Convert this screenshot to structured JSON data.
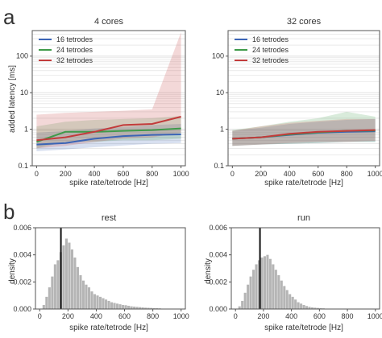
{
  "panel_labels": [
    "a",
    "b"
  ],
  "colors": {
    "16 tetrodes": "#3b64b6",
    "24 tetrodes": "#3f9a4a",
    "32 tetrodes": "#c23b3b",
    "hist": "#b5b5b5",
    "marker": "#111111",
    "grid": "#dddddd",
    "frame": "#555555"
  },
  "chart_data": [
    {
      "type": "line",
      "title": "4 cores",
      "xlabel": "spike rate/tetrode [Hz]",
      "ylabel": "added latency [ms]",
      "yscale": "log",
      "xlim": [
        -30,
        1030
      ],
      "ylim": [
        0.1,
        500
      ],
      "xticks": [
        "0",
        "200",
        "400",
        "600",
        "800",
        "1000"
      ],
      "yticks": [
        "0.1",
        "1",
        "10",
        "100"
      ],
      "grid": "horizontal",
      "legend_position": "top-left",
      "x": [
        0,
        200,
        400,
        600,
        800,
        1000
      ],
      "series": [
        {
          "name": "16 tetrodes",
          "values": [
            0.38,
            0.42,
            0.55,
            0.65,
            0.7,
            0.72
          ],
          "lower": [
            0.25,
            0.28,
            0.32,
            0.36,
            0.4,
            0.42
          ],
          "upper": [
            0.8,
            0.9,
            1.05,
            1.15,
            1.3,
            1.4
          ]
        },
        {
          "name": "24 tetrodes",
          "values": [
            0.45,
            0.85,
            0.85,
            0.9,
            0.95,
            1.05
          ],
          "lower": [
            0.3,
            0.45,
            0.45,
            0.5,
            0.5,
            0.55
          ],
          "upper": [
            1.2,
            1.6,
            1.8,
            1.9,
            2.0,
            2.3
          ]
        },
        {
          "name": "32 tetrodes",
          "values": [
            0.5,
            0.6,
            0.85,
            1.3,
            1.4,
            2.2
          ],
          "lower": [
            0.3,
            0.35,
            0.45,
            0.55,
            0.6,
            0.8
          ],
          "upper": [
            2.5,
            2.8,
            3.0,
            3.2,
            3.5,
            450
          ]
        }
      ]
    },
    {
      "type": "line",
      "title": "32 cores",
      "xlabel": "spike rate/tetrode [Hz]",
      "ylabel": "",
      "yscale": "log",
      "xlim": [
        -30,
        1030
      ],
      "ylim": [
        0.1,
        500
      ],
      "xticks": [
        "0",
        "200",
        "400",
        "600",
        "800",
        "1000"
      ],
      "yticks": [
        "0.1",
        "1",
        "10",
        "100"
      ],
      "grid": "horizontal",
      "legend_position": "top-left",
      "x": [
        0,
        200,
        400,
        600,
        800,
        1000
      ],
      "series": [
        {
          "name": "16 tetrodes",
          "values": [
            0.55,
            0.6,
            0.7,
            0.8,
            0.85,
            0.88
          ],
          "lower": [
            0.35,
            0.38,
            0.4,
            0.42,
            0.45,
            0.45
          ],
          "upper": [
            0.9,
            1.1,
            1.4,
            1.6,
            1.8,
            1.9
          ]
        },
        {
          "name": "24 tetrodes",
          "values": [
            0.55,
            0.6,
            0.72,
            0.82,
            0.9,
            0.92
          ],
          "lower": [
            0.35,
            0.38,
            0.4,
            0.42,
            0.45,
            0.45
          ],
          "upper": [
            0.95,
            1.2,
            1.6,
            2.0,
            3.0,
            2.2
          ]
        },
        {
          "name": "32 tetrodes",
          "values": [
            0.55,
            0.6,
            0.75,
            0.85,
            0.9,
            0.95
          ],
          "lower": [
            0.35,
            0.38,
            0.42,
            0.45,
            0.45,
            0.48
          ],
          "upper": [
            0.9,
            1.2,
            1.5,
            1.7,
            1.9,
            1.9
          ]
        }
      ]
    },
    {
      "type": "histogram",
      "title": "rest",
      "xlabel": "spike rate/tetrode [Hz]",
      "ylabel": "density",
      "xlim": [
        -30,
        1030
      ],
      "ylim": [
        0,
        0.006
      ],
      "xticks": [
        "0",
        "200",
        "400",
        "600",
        "800",
        "1000"
      ],
      "yticks": [
        "0.000",
        "0.002",
        "0.004",
        "0.006"
      ],
      "bin_width": 20,
      "bin_start": 20,
      "values": [
        0.0003,
        0.0009,
        0.0016,
        0.0024,
        0.0033,
        0.0036,
        0.0042,
        0.0047,
        0.0052,
        0.0049,
        0.0044,
        0.0038,
        0.0031,
        0.0025,
        0.0021,
        0.0018,
        0.0016,
        0.0013,
        0.0011,
        0.001,
        0.0009,
        0.0008,
        0.0007,
        0.0006,
        0.0005,
        0.00045,
        0.0004,
        0.00035,
        0.0003,
        0.00028,
        0.00024,
        0.0002,
        0.00018,
        0.00016,
        0.00014,
        0.00012,
        0.0001,
        9e-05,
        8e-05,
        7e-05,
        6e-05,
        5e-05
      ],
      "marker_x": 150
    },
    {
      "type": "histogram",
      "title": "run",
      "xlabel": "spike rate/tetrode [Hz]",
      "ylabel": "density",
      "xlim": [
        -30,
        1030
      ],
      "ylim": [
        0,
        0.006
      ],
      "xticks": [
        "0",
        "200",
        "400",
        "600",
        "800",
        "1000"
      ],
      "yticks": [
        "0.000",
        "0.002",
        "0.004",
        "0.006"
      ],
      "bin_width": 20,
      "bin_start": 20,
      "values": [
        0.0002,
        0.0006,
        0.0012,
        0.0018,
        0.0024,
        0.0029,
        0.0033,
        0.0036,
        0.0038,
        0.0039,
        0.004,
        0.0037,
        0.0033,
        0.0029,
        0.0025,
        0.0021,
        0.0017,
        0.0014,
        0.0011,
        0.0009,
        0.0007,
        0.0005,
        0.0004,
        0.0003,
        0.00022,
        0.00016,
        0.00012,
        0.0001,
        8e-05,
        6e-05,
        5e-05
      ],
      "marker_x": 175
    }
  ]
}
